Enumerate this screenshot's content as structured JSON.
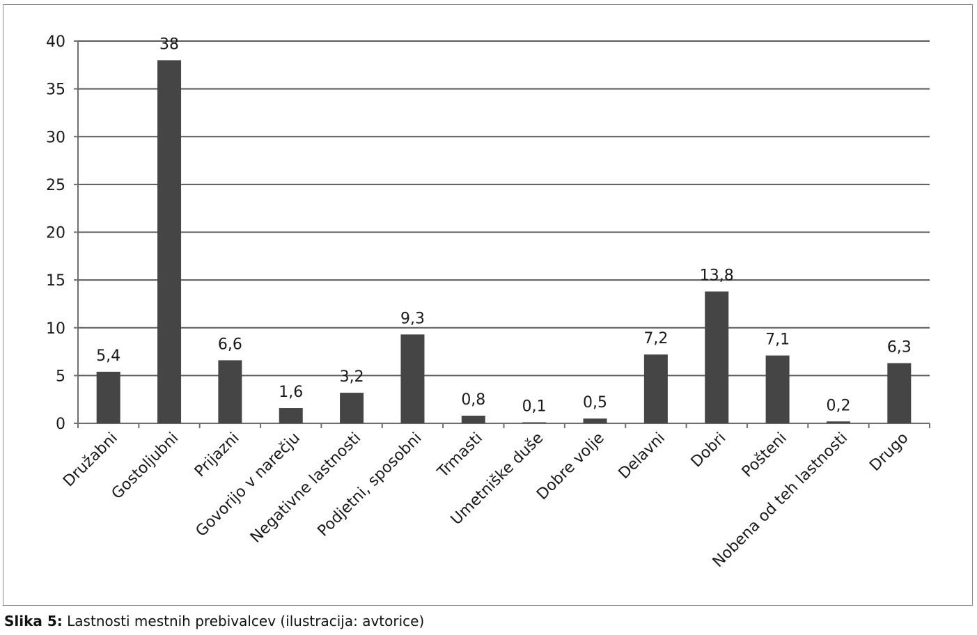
{
  "chart_data": {
    "type": "bar",
    "categories": [
      "Družabni",
      "Gostoljubni",
      "Prijazni",
      "Govorijo v narečju",
      "Negativne lastnosti",
      "Podjetni, sposobni",
      "Trmasti",
      "Umetniške duše",
      "Dobre volje",
      "Delavni",
      "Dobri",
      "Pošteni",
      "Nobena od teh lastnosti",
      "Drugo"
    ],
    "values": [
      5.4,
      38,
      6.6,
      1.6,
      3.2,
      9.3,
      0.8,
      0.1,
      0.5,
      7.2,
      13.8,
      7.1,
      0.2,
      6.3
    ],
    "data_labels": [
      "5,4",
      "38",
      "6,6",
      "1,6",
      "3,2",
      "9,3",
      "0,8",
      "0,1",
      "0,5",
      "7,2",
      "13,8",
      "7,1",
      "0,2",
      "6,3"
    ],
    "yticks": [
      "0",
      "5",
      "10",
      "15",
      "20",
      "25",
      "30",
      "35",
      "40"
    ],
    "ylim": [
      0,
      40
    ],
    "grid": true,
    "legend": "none",
    "colors": {
      "bar": "#454545",
      "grid": "#5a5a5a",
      "axis": "#6e6e6e"
    }
  },
  "caption": {
    "label": "Slika 5:",
    "text": " Lastnosti mestnih prebivalcev (ilustracija: avtorice)"
  }
}
